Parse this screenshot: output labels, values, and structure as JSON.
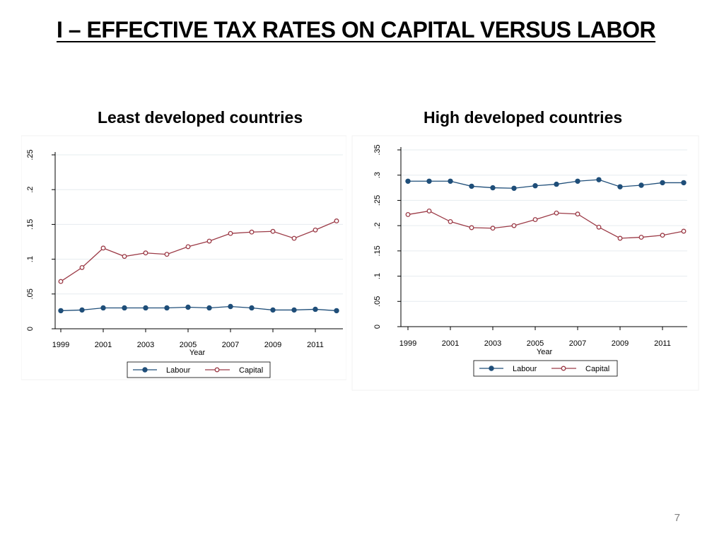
{
  "slide": {
    "title": "I – EFFECTIVE TAX RATES ON CAPITAL VERSUS LABOR",
    "page_number": "7"
  },
  "colors": {
    "labour": "#1f4e79",
    "capital": "#9c3b47",
    "grid": "#e6ecef",
    "axis": "#000000"
  },
  "chart_data": [
    {
      "type": "line",
      "title": "Least developed countries",
      "xlabel": "Year",
      "ylabel": "",
      "x": [
        1999,
        2000,
        2001,
        2002,
        2003,
        2004,
        2005,
        2006,
        2007,
        2008,
        2009,
        2010,
        2011,
        2012
      ],
      "xlim": [
        1999,
        2012
      ],
      "xticks": [
        1999,
        2001,
        2003,
        2005,
        2007,
        2009,
        2011
      ],
      "xtick_labels": [
        "1999",
        "2001",
        "2003",
        "2005",
        "2007",
        "2009",
        "2011"
      ],
      "ylim": [
        0,
        0.25
      ],
      "yticks": [
        0,
        0.05,
        0.1,
        0.15,
        0.2,
        0.25
      ],
      "ytick_labels": [
        "0",
        ".05",
        ".1",
        ".15",
        ".2",
        ".25"
      ],
      "grid": true,
      "legend": "bottom",
      "series": [
        {
          "name": "Labour",
          "marker": "filled-circle",
          "values": [
            0.026,
            0.027,
            0.03,
            0.03,
            0.03,
            0.03,
            0.031,
            0.03,
            0.032,
            0.03,
            0.027,
            0.027,
            0.028,
            0.026
          ]
        },
        {
          "name": "Capital",
          "marker": "hollow-circle",
          "values": [
            0.068,
            0.088,
            0.116,
            0.104,
            0.109,
            0.107,
            0.118,
            0.126,
            0.137,
            0.139,
            0.14,
            0.13,
            0.142,
            0.155
          ]
        }
      ]
    },
    {
      "type": "line",
      "title": "High developed countries",
      "xlabel": "Year",
      "ylabel": "",
      "x": [
        1999,
        2000,
        2001,
        2002,
        2003,
        2004,
        2005,
        2006,
        2007,
        2008,
        2009,
        2010,
        2011,
        2012
      ],
      "xlim": [
        1999,
        2012
      ],
      "xticks": [
        1999,
        2001,
        2003,
        2005,
        2007,
        2009,
        2011
      ],
      "xtick_labels": [
        "1999",
        "2001",
        "2003",
        "2005",
        "2007",
        "2009",
        "2011"
      ],
      "ylim": [
        0,
        0.35
      ],
      "yticks": [
        0,
        0.05,
        0.1,
        0.15,
        0.2,
        0.25,
        0.3,
        0.35
      ],
      "ytick_labels": [
        "0",
        ".05",
        ".1",
        ".15",
        ".2",
        ".25",
        ".3",
        ".35"
      ],
      "grid": true,
      "legend": "bottom",
      "series": [
        {
          "name": "Labour",
          "marker": "filled-circle",
          "values": [
            0.288,
            0.288,
            0.288,
            0.278,
            0.275,
            0.274,
            0.279,
            0.282,
            0.288,
            0.291,
            0.277,
            0.28,
            0.285,
            0.285
          ]
        },
        {
          "name": "Capital",
          "marker": "hollow-circle",
          "values": [
            0.222,
            0.229,
            0.208,
            0.196,
            0.195,
            0.2,
            0.212,
            0.225,
            0.223,
            0.197,
            0.175,
            0.177,
            0.181,
            0.189
          ]
        }
      ]
    }
  ]
}
